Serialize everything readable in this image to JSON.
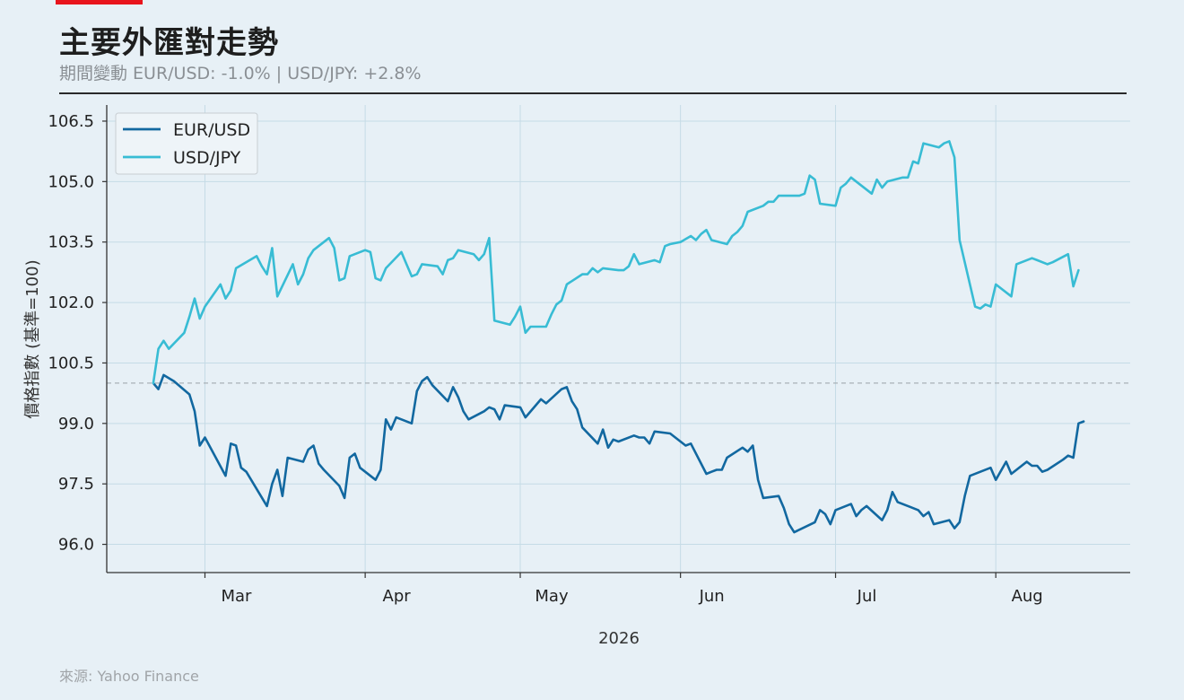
{
  "header": {
    "title": "主要外匯對走勢",
    "subtitle": "期間變動 EUR/USD: -1.0% | USD/JPY: +2.8%",
    "accent_color": "#e8141c"
  },
  "footer": {
    "source": "來源: Yahoo Finance"
  },
  "chart_data": {
    "type": "line",
    "xlabel": "2026",
    "ylabel": "價格指數 (基準=100)",
    "x_ticks": [
      "Mar",
      "Apr",
      "May",
      "Jun",
      "Jul",
      "Aug"
    ],
    "y_ticks": [
      96.0,
      97.5,
      99.0,
      100.5,
      102.0,
      103.5,
      105.0,
      106.5
    ],
    "ylim": [
      95.3,
      106.9
    ],
    "baseline": 100,
    "grid": true,
    "legend": "top-left",
    "series": [
      {
        "name": "EUR/USD",
        "color": "#1268a0",
        "points": [
          [
            "2026-02-19",
            100.0
          ],
          [
            "2026-02-20",
            99.85
          ],
          [
            "2026-02-21",
            100.2
          ],
          [
            "2026-02-23",
            100.05
          ],
          [
            "2026-02-26",
            99.72
          ],
          [
            "2026-02-27",
            99.3
          ],
          [
            "2026-02-28",
            98.45
          ],
          [
            "2026-03-01",
            98.65
          ],
          [
            "2026-03-05",
            97.7
          ],
          [
            "2026-03-06",
            98.5
          ],
          [
            "2026-03-07",
            98.45
          ],
          [
            "2026-03-08",
            97.9
          ],
          [
            "2026-03-09",
            97.8
          ],
          [
            "2026-03-13",
            96.95
          ],
          [
            "2026-03-14",
            97.5
          ],
          [
            "2026-03-15",
            97.85
          ],
          [
            "2026-03-16",
            97.2
          ],
          [
            "2026-03-17",
            98.15
          ],
          [
            "2026-03-20",
            98.05
          ],
          [
            "2026-03-21",
            98.35
          ],
          [
            "2026-03-22",
            98.45
          ],
          [
            "2026-03-23",
            98.0
          ],
          [
            "2026-03-24",
            97.85
          ],
          [
            "2026-03-27",
            97.45
          ],
          [
            "2026-03-28",
            97.15
          ],
          [
            "2026-03-29",
            98.15
          ],
          [
            "2026-03-30",
            98.25
          ],
          [
            "2026-03-31",
            97.9
          ],
          [
            "2026-04-03",
            97.6
          ],
          [
            "2026-04-04",
            97.85
          ],
          [
            "2026-04-05",
            99.1
          ],
          [
            "2026-04-06",
            98.85
          ],
          [
            "2026-04-07",
            99.15
          ],
          [
            "2026-04-10",
            99.0
          ],
          [
            "2026-04-11",
            99.8
          ],
          [
            "2026-04-12",
            100.05
          ],
          [
            "2026-04-13",
            100.15
          ],
          [
            "2026-04-14",
            99.95
          ],
          [
            "2026-04-17",
            99.55
          ],
          [
            "2026-04-18",
            99.9
          ],
          [
            "2026-04-19",
            99.65
          ],
          [
            "2026-04-20",
            99.3
          ],
          [
            "2026-04-21",
            99.1
          ],
          [
            "2026-04-24",
            99.3
          ],
          [
            "2026-04-25",
            99.4
          ],
          [
            "2026-04-26",
            99.35
          ],
          [
            "2026-04-27",
            99.1
          ],
          [
            "2026-04-28",
            99.45
          ],
          [
            "2026-05-01",
            99.4
          ],
          [
            "2026-05-02",
            99.15
          ],
          [
            "2026-05-05",
            99.6
          ],
          [
            "2026-05-06",
            99.5
          ],
          [
            "2026-05-09",
            99.85
          ],
          [
            "2026-05-10",
            99.9
          ],
          [
            "2026-05-11",
            99.55
          ],
          [
            "2026-05-12",
            99.35
          ],
          [
            "2026-05-13",
            98.9
          ],
          [
            "2026-05-16",
            98.5
          ],
          [
            "2026-05-17",
            98.85
          ],
          [
            "2026-05-18",
            98.4
          ],
          [
            "2026-05-19",
            98.6
          ],
          [
            "2026-05-20",
            98.55
          ],
          [
            "2026-05-23",
            98.7
          ],
          [
            "2026-05-24",
            98.65
          ],
          [
            "2026-05-25",
            98.65
          ],
          [
            "2026-05-26",
            98.5
          ],
          [
            "2026-05-27",
            98.8
          ],
          [
            "2026-05-30",
            98.75
          ],
          [
            "2026-06-02",
            98.45
          ],
          [
            "2026-06-03",
            98.5
          ],
          [
            "2026-06-06",
            97.75
          ],
          [
            "2026-06-07",
            97.8
          ],
          [
            "2026-06-08",
            97.85
          ],
          [
            "2026-06-09",
            97.85
          ],
          [
            "2026-06-10",
            98.15
          ],
          [
            "2026-06-13",
            98.4
          ],
          [
            "2026-06-14",
            98.3
          ],
          [
            "2026-06-15",
            98.45
          ],
          [
            "2026-06-16",
            97.6
          ],
          [
            "2026-06-17",
            97.15
          ],
          [
            "2026-06-20",
            97.2
          ],
          [
            "2026-06-21",
            96.9
          ],
          [
            "2026-06-22",
            96.5
          ],
          [
            "2026-06-23",
            96.3
          ],
          [
            "2026-06-27",
            96.55
          ],
          [
            "2026-06-28",
            96.85
          ],
          [
            "2026-06-29",
            96.75
          ],
          [
            "2026-06-30",
            96.5
          ],
          [
            "2026-07-01",
            96.85
          ],
          [
            "2026-07-04",
            97.0
          ],
          [
            "2026-07-05",
            96.7
          ],
          [
            "2026-07-06",
            96.85
          ],
          [
            "2026-07-07",
            96.95
          ],
          [
            "2026-07-10",
            96.6
          ],
          [
            "2026-07-11",
            96.85
          ],
          [
            "2026-07-12",
            97.3
          ],
          [
            "2026-07-13",
            97.05
          ],
          [
            "2026-07-17",
            96.85
          ],
          [
            "2026-07-18",
            96.7
          ],
          [
            "2026-07-19",
            96.8
          ],
          [
            "2026-07-20",
            96.5
          ],
          [
            "2026-07-23",
            96.6
          ],
          [
            "2026-07-24",
            96.4
          ],
          [
            "2026-07-25",
            96.55
          ],
          [
            "2026-07-26",
            97.2
          ],
          [
            "2026-07-27",
            97.7
          ],
          [
            "2026-07-31",
            97.9
          ],
          [
            "2026-08-01",
            97.6
          ],
          [
            "2026-08-03",
            98.05
          ],
          [
            "2026-08-04",
            97.75
          ],
          [
            "2026-08-07",
            98.05
          ],
          [
            "2026-08-08",
            97.95
          ],
          [
            "2026-08-09",
            97.95
          ],
          [
            "2026-08-10",
            97.8
          ],
          [
            "2026-08-11",
            97.85
          ],
          [
            "2026-08-14",
            98.1
          ],
          [
            "2026-08-15",
            98.2
          ],
          [
            "2026-08-16",
            98.15
          ],
          [
            "2026-08-17",
            99.0
          ],
          [
            "2026-08-18",
            99.05
          ]
        ]
      },
      {
        "name": "USD/JPY",
        "color": "#38bcd4",
        "points": [
          [
            "2026-02-19",
            100.0
          ],
          [
            "2026-02-20",
            100.85
          ],
          [
            "2026-02-21",
            101.05
          ],
          [
            "2026-02-22",
            100.85
          ],
          [
            "2026-02-25",
            101.25
          ],
          [
            "2026-02-26",
            101.65
          ],
          [
            "2026-02-27",
            102.1
          ],
          [
            "2026-02-28",
            101.6
          ],
          [
            "2026-03-01",
            101.9
          ],
          [
            "2026-03-04",
            102.45
          ],
          [
            "2026-03-05",
            102.1
          ],
          [
            "2026-03-06",
            102.3
          ],
          [
            "2026-03-07",
            102.85
          ],
          [
            "2026-03-11",
            103.15
          ],
          [
            "2026-03-12",
            102.9
          ],
          [
            "2026-03-13",
            102.7
          ],
          [
            "2026-03-14",
            103.35
          ],
          [
            "2026-03-15",
            102.15
          ],
          [
            "2026-03-18",
            102.95
          ],
          [
            "2026-03-19",
            102.45
          ],
          [
            "2026-03-20",
            102.7
          ],
          [
            "2026-03-21",
            103.1
          ],
          [
            "2026-03-22",
            103.3
          ],
          [
            "2026-03-25",
            103.6
          ],
          [
            "2026-03-26",
            103.35
          ],
          [
            "2026-03-27",
            102.55
          ],
          [
            "2026-03-28",
            102.6
          ],
          [
            "2026-03-29",
            103.15
          ],
          [
            "2026-04-01",
            103.3
          ],
          [
            "2026-04-02",
            103.25
          ],
          [
            "2026-04-03",
            102.6
          ],
          [
            "2026-04-04",
            102.55
          ],
          [
            "2026-04-05",
            102.85
          ],
          [
            "2026-04-08",
            103.25
          ],
          [
            "2026-04-09",
            102.95
          ],
          [
            "2026-04-10",
            102.65
          ],
          [
            "2026-04-11",
            102.7
          ],
          [
            "2026-04-12",
            102.95
          ],
          [
            "2026-04-15",
            102.9
          ],
          [
            "2026-04-16",
            102.7
          ],
          [
            "2026-04-17",
            103.05
          ],
          [
            "2026-04-18",
            103.1
          ],
          [
            "2026-04-19",
            103.3
          ],
          [
            "2026-04-22",
            103.2
          ],
          [
            "2026-04-23",
            103.05
          ],
          [
            "2026-04-24",
            103.2
          ],
          [
            "2026-04-25",
            103.6
          ],
          [
            "2026-04-26",
            101.55
          ],
          [
            "2026-04-29",
            101.45
          ],
          [
            "2026-04-30",
            101.65
          ],
          [
            "2026-05-01",
            101.9
          ],
          [
            "2026-05-02",
            101.25
          ],
          [
            "2026-05-03",
            101.4
          ],
          [
            "2026-05-06",
            101.4
          ],
          [
            "2026-05-07",
            101.7
          ],
          [
            "2026-05-08",
            101.95
          ],
          [
            "2026-05-09",
            102.05
          ],
          [
            "2026-05-10",
            102.45
          ],
          [
            "2026-05-13",
            102.7
          ],
          [
            "2026-05-14",
            102.7
          ],
          [
            "2026-05-15",
            102.85
          ],
          [
            "2026-05-16",
            102.75
          ],
          [
            "2026-05-17",
            102.85
          ],
          [
            "2026-05-20",
            102.8
          ],
          [
            "2026-05-21",
            102.8
          ],
          [
            "2026-05-22",
            102.9
          ],
          [
            "2026-05-23",
            103.2
          ],
          [
            "2026-05-24",
            102.95
          ],
          [
            "2026-05-27",
            103.05
          ],
          [
            "2026-05-28",
            103.0
          ],
          [
            "2026-05-29",
            103.4
          ],
          [
            "2026-05-30",
            103.45
          ],
          [
            "2026-06-01",
            103.5
          ],
          [
            "2026-06-03",
            103.65
          ],
          [
            "2026-06-04",
            103.55
          ],
          [
            "2026-06-05",
            103.7
          ],
          [
            "2026-06-06",
            103.8
          ],
          [
            "2026-06-07",
            103.55
          ],
          [
            "2026-06-10",
            103.45
          ],
          [
            "2026-06-11",
            103.65
          ],
          [
            "2026-06-12",
            103.75
          ],
          [
            "2026-06-13",
            103.9
          ],
          [
            "2026-06-14",
            104.25
          ],
          [
            "2026-06-17",
            104.4
          ],
          [
            "2026-06-18",
            104.5
          ],
          [
            "2026-06-19",
            104.5
          ],
          [
            "2026-06-20",
            104.65
          ],
          [
            "2026-06-21",
            104.65
          ],
          [
            "2026-06-24",
            104.65
          ],
          [
            "2026-06-25",
            104.7
          ],
          [
            "2026-06-26",
            105.15
          ],
          [
            "2026-06-27",
            105.05
          ],
          [
            "2026-06-28",
            104.45
          ],
          [
            "2026-07-01",
            104.4
          ],
          [
            "2026-07-02",
            104.85
          ],
          [
            "2026-07-03",
            104.95
          ],
          [
            "2026-07-04",
            105.1
          ],
          [
            "2026-07-08",
            104.7
          ],
          [
            "2026-07-09",
            105.05
          ],
          [
            "2026-07-10",
            104.85
          ],
          [
            "2026-07-11",
            105.0
          ],
          [
            "2026-07-14",
            105.1
          ],
          [
            "2026-07-15",
            105.1
          ],
          [
            "2026-07-16",
            105.5
          ],
          [
            "2026-07-17",
            105.45
          ],
          [
            "2026-07-18",
            105.95
          ],
          [
            "2026-07-21",
            105.85
          ],
          [
            "2026-07-22",
            105.95
          ],
          [
            "2026-07-23",
            106.0
          ],
          [
            "2026-07-24",
            105.6
          ],
          [
            "2026-07-25",
            103.55
          ],
          [
            "2026-07-28",
            101.9
          ],
          [
            "2026-07-29",
            101.85
          ],
          [
            "2026-07-30",
            101.95
          ],
          [
            "2026-07-31",
            101.9
          ],
          [
            "2026-08-01",
            102.45
          ],
          [
            "2026-08-04",
            102.15
          ],
          [
            "2026-08-05",
            102.95
          ],
          [
            "2026-08-08",
            103.1
          ],
          [
            "2026-08-09",
            103.05
          ],
          [
            "2026-08-11",
            102.95
          ],
          [
            "2026-08-12",
            103.0
          ],
          [
            "2026-08-15",
            103.2
          ],
          [
            "2026-08-16",
            102.4
          ],
          [
            "2026-08-17",
            102.8
          ]
        ]
      }
    ]
  }
}
